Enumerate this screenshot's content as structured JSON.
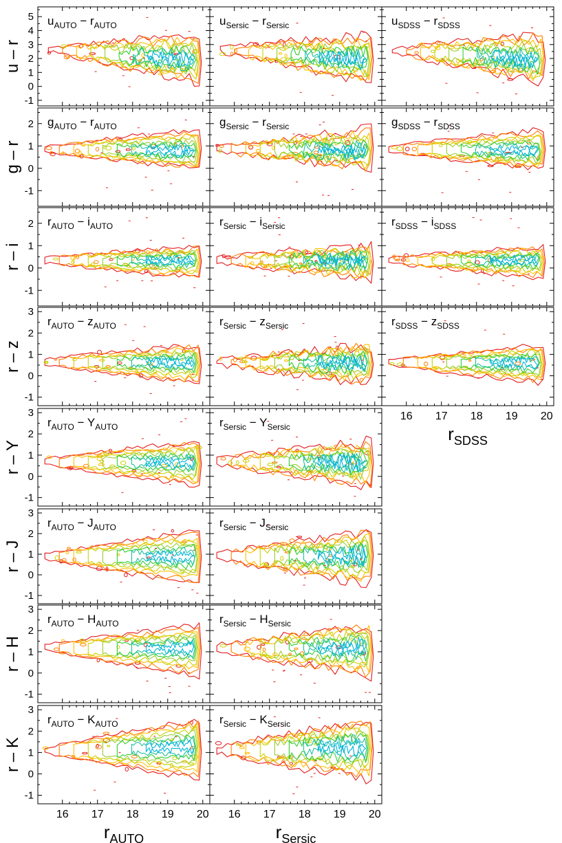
{
  "figure": {
    "x_axis_labels": [
      {
        "base": "r",
        "sub": "AUTO"
      },
      {
        "base": "r",
        "sub": "Sersic"
      },
      {
        "base": "r",
        "sub": "SDSS"
      }
    ],
    "x_tick_labels": [
      "16",
      "17",
      "18",
      "19",
      "20"
    ],
    "rows": [
      {
        "ylabel": "u – r",
        "ylim": [
          -1.4,
          5.7
        ],
        "ticks": [
          "-1",
          "0",
          "1",
          "2",
          "3",
          "4",
          "5"
        ]
      },
      {
        "ylabel": "g – r",
        "ylim": [
          -1.7,
          2.7
        ],
        "ticks": [
          "-1",
          "0",
          "1",
          "2"
        ]
      },
      {
        "ylabel": "r – i",
        "ylim": [
          -1.7,
          2.7
        ],
        "ticks": [
          "-1",
          "0",
          "1",
          "2"
        ]
      },
      {
        "ylabel": "r – z",
        "ylim": [
          -1.4,
          3.2
        ],
        "ticks": [
          "-1",
          "0",
          "1",
          "2",
          "3"
        ]
      },
      {
        "ylabel": "r – Y",
        "ylim": [
          -1.4,
          3.2
        ],
        "ticks": [
          "-1",
          "0",
          "1",
          "2",
          "3"
        ]
      },
      {
        "ylabel": "r – J",
        "ylim": [
          -1.4,
          3.2
        ],
        "ticks": [
          "-1",
          "0",
          "1",
          "2",
          "3"
        ]
      },
      {
        "ylabel": "r – H",
        "ylim": [
          -1.4,
          3.2
        ],
        "ticks": [
          "-1",
          "0",
          "1",
          "2",
          "3"
        ]
      },
      {
        "ylabel": "r – K",
        "ylim": [
          -1.4,
          3.2
        ],
        "ticks": [
          "-1",
          "0",
          "1",
          "2",
          "3"
        ]
      }
    ],
    "panel_labels": [
      [
        {
          "a": "u",
          "b": "r",
          "s": "AUTO"
        },
        {
          "a": "u",
          "b": "r",
          "s": "Sersic"
        },
        {
          "a": "u",
          "b": "r",
          "s": "SDSS"
        }
      ],
      [
        {
          "a": "g",
          "b": "r",
          "s": "AUTO"
        },
        {
          "a": "g",
          "b": "r",
          "s": "Sersic"
        },
        {
          "a": "g",
          "b": "r",
          "s": "SDSS"
        }
      ],
      [
        {
          "a": "r",
          "b": "i",
          "s": "AUTO"
        },
        {
          "a": "r",
          "b": "i",
          "s": "Sersic"
        },
        {
          "a": "r",
          "b": "i",
          "s": "SDSS"
        }
      ],
      [
        {
          "a": "r",
          "b": "z",
          "s": "AUTO"
        },
        {
          "a": "r",
          "b": "z",
          "s": "Sersic"
        },
        {
          "a": "r",
          "b": "z",
          "s": "SDSS"
        }
      ],
      [
        {
          "a": "r",
          "b": "Y",
          "s": "AUTO"
        },
        {
          "a": "r",
          "b": "Y",
          "s": "Sersic"
        }
      ],
      [
        {
          "a": "r",
          "b": "J",
          "s": "AUTO"
        },
        {
          "a": "r",
          "b": "J",
          "s": "Sersic"
        }
      ],
      [
        {
          "a": "r",
          "b": "H",
          "s": "AUTO"
        },
        {
          "a": "r",
          "b": "H",
          "s": "Sersic"
        }
      ],
      [
        {
          "a": "r",
          "b": "K",
          "s": "AUTO"
        },
        {
          "a": "r",
          "b": "K",
          "s": "Sersic"
        }
      ]
    ]
  },
  "colors": {
    "contour_levels": [
      "#e41a1c",
      "#ff7f00",
      "#ffbf00",
      "#c8d200",
      "#9acd32",
      "#32cd32",
      "#20c0a0",
      "#00b4d8"
    ],
    "axes": "#000000"
  },
  "chart_data": {
    "type": "contour",
    "xlim": [
      15.3,
      20.2
    ],
    "description_of_distribution": [
      {
        "row": "u – r",
        "x": [
          15.6,
          19.9
        ],
        "center_y": [
          2.6,
          1.8
        ],
        "spread_y_at_faint_end": [
          0.5,
          3.5
        ]
      },
      {
        "row": "g – r",
        "x": [
          15.5,
          19.9
        ],
        "center_y": [
          0.85,
          0.75
        ],
        "spread_y_at_faint_end": [
          0.1,
          1.6
        ]
      },
      {
        "row": "r – i",
        "x": [
          15.5,
          19.9
        ],
        "center_y": [
          0.35,
          0.35
        ],
        "spread_y_at_faint_end": [
          -0.3,
          0.8
        ]
      },
      {
        "row": "r – z",
        "x": [
          15.5,
          19.9
        ],
        "center_y": [
          0.65,
          0.6
        ],
        "spread_y_at_faint_end": [
          -0.2,
          1.3
        ]
      },
      {
        "row": "r – Y",
        "x": [
          15.5,
          19.9
        ],
        "center_y": [
          0.7,
          0.65
        ],
        "spread_y_at_faint_end": [
          -0.3,
          1.5
        ]
      },
      {
        "row": "r – J",
        "x": [
          15.5,
          19.9
        ],
        "center_y": [
          0.9,
          0.9
        ],
        "spread_y_at_faint_end": [
          -0.3,
          2.0
        ]
      },
      {
        "row": "r – H",
        "x": [
          15.5,
          19.9
        ],
        "center_y": [
          1.2,
          1.2
        ],
        "spread_y_at_faint_end": [
          0.0,
          2.1
        ]
      },
      {
        "row": "r – K",
        "x": [
          15.5,
          19.9
        ],
        "center_y": [
          1.1,
          1.3
        ],
        "spread_y_at_faint_end": [
          -0.1,
          2.4
        ]
      }
    ]
  }
}
